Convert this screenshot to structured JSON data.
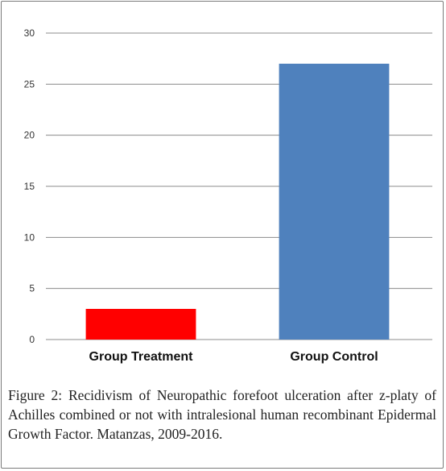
{
  "chart_data": {
    "type": "bar",
    "categories": [
      "Group Treatment",
      "Group Control"
    ],
    "values": [
      3,
      27
    ],
    "bar_colors": [
      "#ff0000",
      "#4f81bd"
    ],
    "ylim": [
      0,
      30
    ],
    "yticks": [
      0,
      5,
      10,
      15,
      20,
      25,
      30
    ],
    "grid": true,
    "legend": "none",
    "title": "",
    "xlabel": "",
    "ylabel": ""
  },
  "caption": {
    "label": "Figure 2:",
    "text": "Recidivism of Neuropathic forefoot ulceration after z-platy of Achilles combined or not with intralesional human recombinant Epidermal Growth Factor. Matanzas, 2009-2016."
  }
}
